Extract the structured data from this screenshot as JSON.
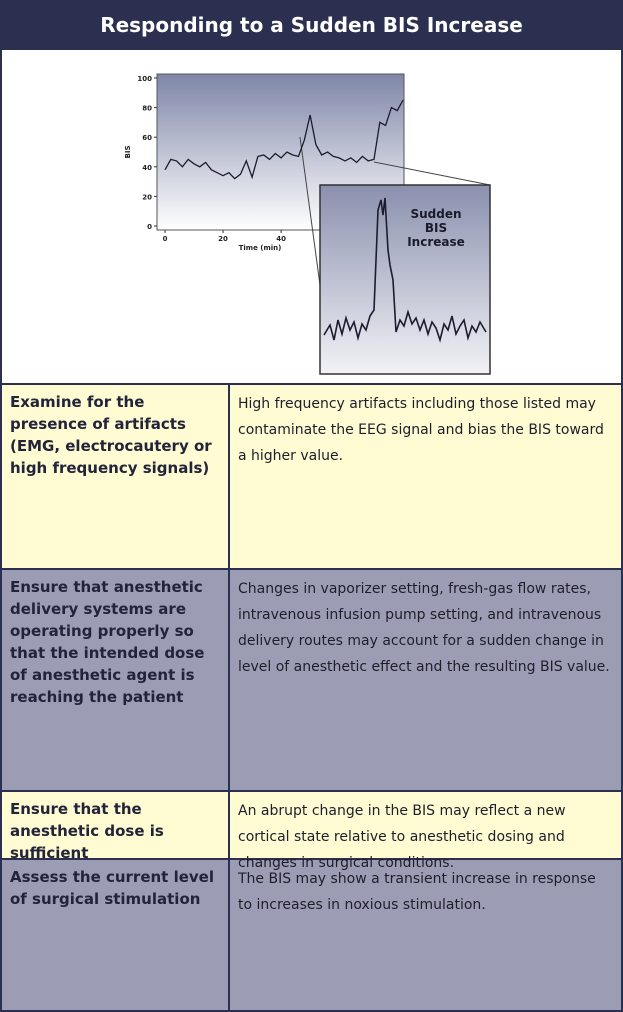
{
  "header": {
    "title": "Responding to a Sudden BIS Increase"
  },
  "figure": {
    "y_label": "BIS",
    "x_label": "Time (min)",
    "ylim": [
      0,
      100
    ],
    "yticks": [
      0,
      20,
      40,
      60,
      80,
      100
    ],
    "xlim": [
      0,
      82
    ],
    "xticks": [
      0,
      20,
      40
    ],
    "x": [
      0,
      2,
      4,
      6,
      8,
      10,
      12,
      14,
      16,
      18,
      20,
      22,
      24,
      26,
      28,
      30,
      32,
      34,
      36,
      38,
      40,
      42,
      44,
      46,
      48,
      50,
      52,
      54,
      56,
      58,
      60,
      62,
      64,
      66,
      68,
      70,
      72,
      74,
      76,
      78,
      80,
      82
    ],
    "values": [
      38,
      45,
      44,
      40,
      45,
      42,
      40,
      43,
      38,
      36,
      34,
      36,
      32,
      35,
      44,
      33,
      47,
      48,
      45,
      49,
      46,
      50,
      48,
      47,
      58,
      75,
      55,
      48,
      50,
      47,
      46,
      44,
      46,
      43,
      47,
      44,
      45,
      70,
      68,
      80,
      78,
      85
    ],
    "inset_label": "Sudden BIS Increase"
  },
  "table": {
    "rows": [
      [
        "Examine for the presence of artifacts (EMG, electrocautery or high frequency signals)",
        "High frequency artifacts including those listed may contaminate the EEG signal and bias the BIS toward a higher value."
      ],
      [
        "Ensure that anesthetic delivery systems are operating properly so that the intended dose of anesthetic agent is reaching the patient",
        "Changes in vaporizer setting, fresh-gas flow rates, intravenous infusion pump setting, and intravenous delivery routes may account for a sudden change in level of anesthetic effect and the resulting BIS value."
      ],
      [
        "Ensure that the anesthetic dose is sufficient",
        "An abrupt change in the BIS may reflect a new cortical state relative to anesthetic dosing and changes in surgical conditions."
      ],
      [
        "Assess the current level of surgical stimulation",
        "The BIS may show a transient increase in response to increases in noxious stimulation."
      ]
    ]
  }
}
